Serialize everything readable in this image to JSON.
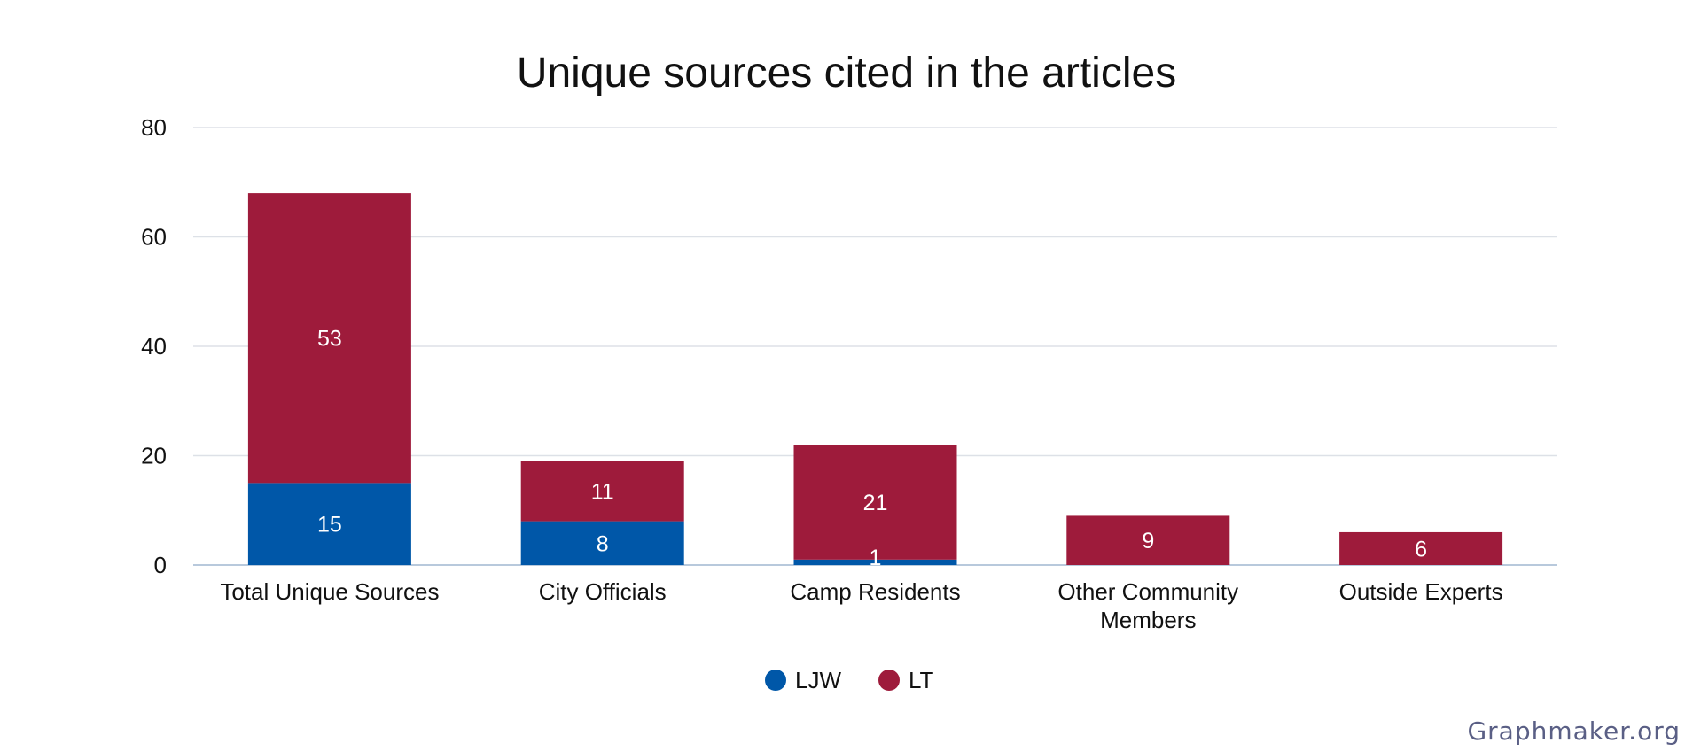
{
  "chart_data": {
    "type": "bar",
    "stacked": true,
    "title": "Unique sources cited in the articles",
    "xlabel": "",
    "ylabel": "",
    "ylim": [
      0,
      80
    ],
    "yticks": [
      0,
      20,
      40,
      60,
      80
    ],
    "grid": true,
    "legend_position": "bottom-center",
    "categories": [
      [
        "Total Unique Sources"
      ],
      [
        "City Officials"
      ],
      [
        "Camp Residents"
      ],
      [
        "Other Community",
        "Members"
      ],
      [
        "Outside Experts"
      ]
    ],
    "series": [
      {
        "name": "LJW",
        "color": "#0057a8",
        "values": [
          15,
          8,
          1,
          0,
          0
        ]
      },
      {
        "name": "LT",
        "color": "#9e1b3b",
        "values": [
          53,
          11,
          21,
          9,
          6
        ]
      }
    ]
  },
  "colors": {
    "text": "#111111",
    "grid": "#dde1e7",
    "axis": "#b8c9dc",
    "label_on_bar": "#ffffff",
    "watermark": "#5a5f85"
  },
  "watermark": "Graphmaker.org"
}
